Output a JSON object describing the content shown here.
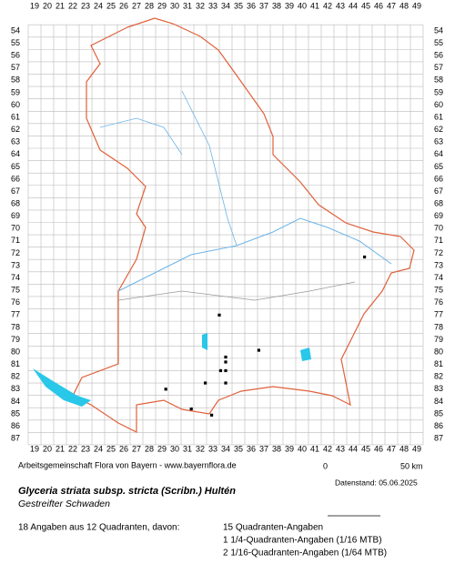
{
  "grid": {
    "columns": [
      19,
      20,
      21,
      22,
      23,
      24,
      25,
      26,
      27,
      28,
      29,
      30,
      31,
      32,
      33,
      34,
      35,
      36,
      37,
      38,
      39,
      40,
      41,
      42,
      43,
      44,
      45,
      46,
      47,
      48,
      49
    ],
    "rows": [
      54,
      55,
      56,
      57,
      58,
      59,
      60,
      61,
      62,
      63,
      64,
      65,
      66,
      67,
      68,
      69,
      70,
      71,
      72,
      73,
      74,
      75,
      76,
      77,
      78,
      79,
      80,
      81,
      82,
      83,
      84,
      85,
      86,
      87
    ]
  },
  "points": [
    {
      "col": 33.5,
      "row": 77.0
    },
    {
      "col": 36.6,
      "row": 79.85
    },
    {
      "col": 34.0,
      "row": 80.4
    },
    {
      "col": 34.0,
      "row": 80.8
    },
    {
      "col": 33.6,
      "row": 81.5
    },
    {
      "col": 34.0,
      "row": 81.5
    },
    {
      "col": 34.0,
      "row": 82.5
    },
    {
      "col": 32.4,
      "row": 82.5
    },
    {
      "col": 29.3,
      "row": 83.0
    },
    {
      "col": 31.3,
      "row": 84.6
    },
    {
      "col": 32.9,
      "row": 85.1
    },
    {
      "col": 44.9,
      "row": 72.3
    }
  ],
  "footer": {
    "source": "Arbeitsgemeinschaft Flora von Bayern - www.bayernflora.de",
    "scale_zero": "0",
    "scale_end": "50 km",
    "date": "Datenstand: 05.06.2025"
  },
  "species": {
    "name": "Glyceria striata subsp. stricta (Scribn.) Hultén",
    "common": "Gestreifter Schwaden"
  },
  "summary": {
    "total": "18 Angaben aus 12 Quadranten, davon:",
    "q": "15 Quadranten-Angaben",
    "q4": "1 1/4-Quadranten-Angaben (1/16 MTB)",
    "q16": "2 1/16-Quadranten-Angaben (1/64 MTB)"
  }
}
